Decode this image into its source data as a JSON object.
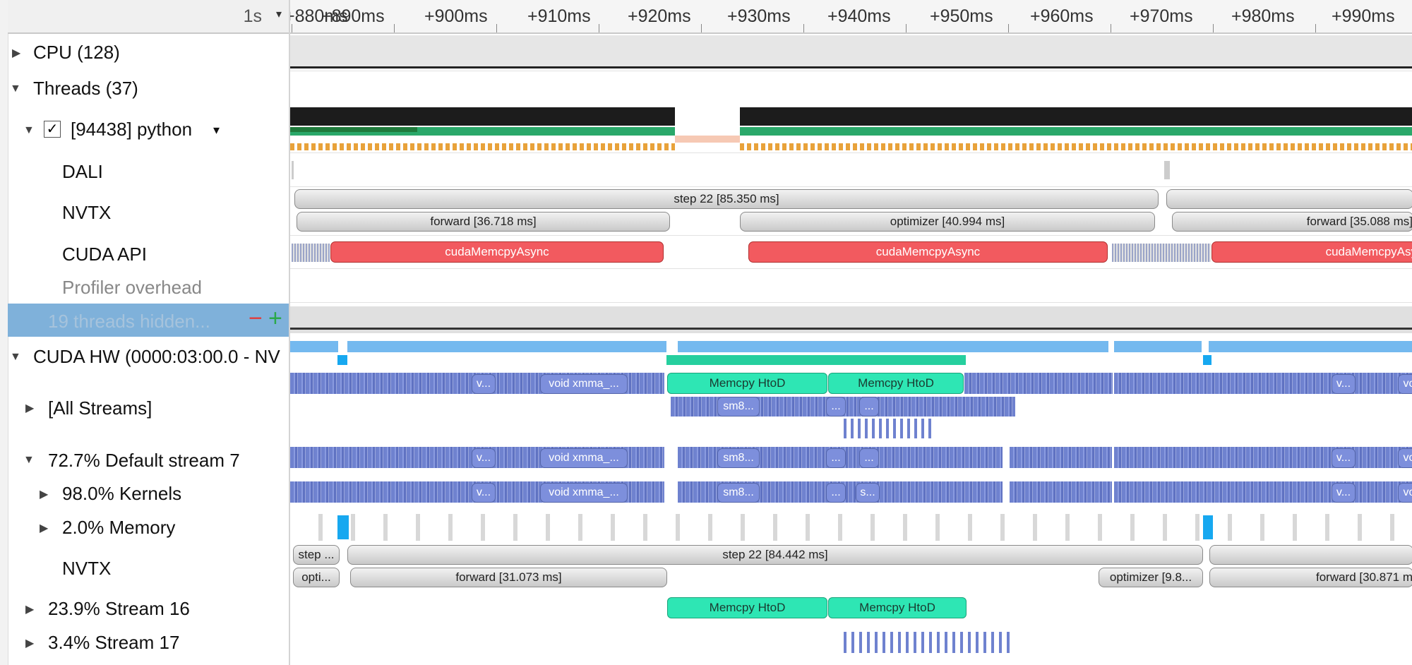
{
  "zoom": {
    "label": "1s",
    "caret": "▾"
  },
  "ruler": {
    "ticks": [
      "+880ms",
      "+890ms",
      "+900ms",
      "+910ms",
      "+920ms",
      "+930ms",
      "+940ms",
      "+950ms",
      "+960ms",
      "+970ms",
      "+980ms",
      "+990ms"
    ]
  },
  "rows": {
    "cpu": "CPU (128)",
    "threads": "Threads (37)",
    "python": "[94438] python",
    "dali": "DALI",
    "nvtx": "NVTX",
    "cuda_api": "CUDA API",
    "profiler_overhead": "Profiler overhead",
    "threads_hidden": "19 threads hidden...",
    "cuda_hw": "CUDA HW (0000:03:00.0 - NV",
    "all_streams": "[All Streams]",
    "default_stream": "72.7% Default stream 7",
    "kernels": "98.0% Kernels",
    "memory": "2.0% Memory",
    "nvtx2": "NVTX",
    "stream16": "23.9% Stream 16",
    "stream17": "3.4% Stream 17"
  },
  "hidden_controls": {
    "minus": "−",
    "plus": "+"
  },
  "check_mark": "✓",
  "dropdown_caret": "▾",
  "icons": {
    "expanded": "▼",
    "collapsed": "▶"
  },
  "timeline": {
    "nvtx_thread": {
      "step_a": "step 22 [85.350 ms]",
      "forward_a": "forward [36.718 ms]",
      "optimizer_a": "optimizer [40.994 ms]",
      "forward_b": "forward [35.088 ms]"
    },
    "cuda_api": {
      "memcpy_1": "cudaMemcpyAsync",
      "memcpy_2": "cudaMemcpyAsync",
      "memcpy_3": "cudaMemcpyAsy"
    },
    "all_streams": {
      "v1": "v...",
      "xmma1": "void xmma_...",
      "memcpy_a": "Memcpy HtoD",
      "memcpy_b": "Memcpy HtoD",
      "v2": "v...",
      "vo": "vo",
      "sm8": "sm8...",
      "dots1": "...",
      "dots2": "..."
    },
    "default_stream": {
      "v1": "v...",
      "xmma1": "void xmma_...",
      "sm8": "sm8...",
      "dots1": "...",
      "dots2": "...",
      "v2": "v...",
      "vo": "vo"
    },
    "kernels": {
      "v1": "v...",
      "xmma1": "void xmma_...",
      "sm8": "sm8...",
      "dots1": "...",
      "s": "s...",
      "v2": "v...",
      "vo": "vo"
    },
    "nvtx_stream": {
      "step_prev": "step ...",
      "step": "step 22 [84.442 ms]",
      "opti_prev": "opti...",
      "forward_a": "forward [31.073 ms]",
      "optimizer": "optimizer [9.8...",
      "forward_b": "forward [30.871 m"
    },
    "stream16": {
      "memcpy_a": "Memcpy HtoD",
      "memcpy_b": "Memcpy HtoD"
    }
  },
  "colors": {
    "selection": "#7fb1da",
    "memcpy_api": "#f25a5f",
    "memcpy_hw": "#2ee6b4",
    "kernel": "#7d8fdc"
  }
}
